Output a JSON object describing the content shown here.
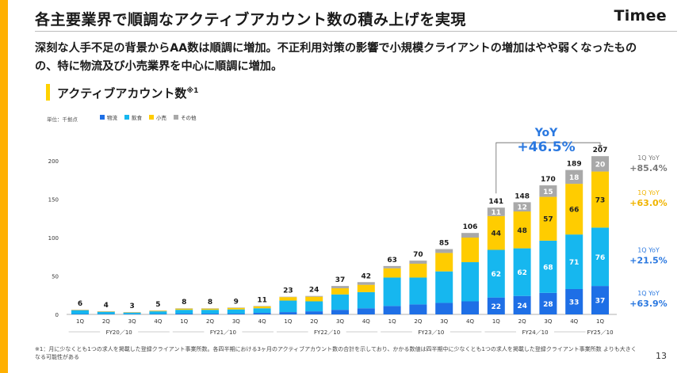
{
  "header": {
    "title": "各主要業界で順調なアクティブアカウント数の積み上げを実現",
    "logo": "Timee"
  },
  "body_text": "深刻な人手不足の背景からAA数は順調に増加。不正利用対策の影響で小規模クライアントの増加はやや弱くなったもの の、特に物流及び小売業界を中心に順調に増加。",
  "section": {
    "title": "アクティブアカウント数",
    "footnote_mark": "※1"
  },
  "footnote": "※1：月に少なくとも1つの求人を掲載した登録クライアント事業所数。各四半期における3ヶ月のアクティブアカウント数の合計を示しており、かかる数値は四半期中に少なくとも1つの求人を掲載した登録クライアント事業所数 よりも大きくなる可能性がある",
  "page_number": "13",
  "colors": {
    "butsuryu": "#1e6fe6",
    "inshoku": "#16b7ef",
    "kouri": "#ffcc00",
    "sonota": "#a9a9a9",
    "accent_left": "#ffb000",
    "yoy_blue": "#2a78e0",
    "yoy_yellow": "#f0b400",
    "yoy_gray": "#7a7a7a"
  },
  "chart_data": {
    "type": "bar",
    "stacked": true,
    "unit_label": "単位：千拠点",
    "ylim": [
      0,
      210
    ],
    "yticks": [
      0,
      50,
      100,
      150,
      200
    ],
    "grid": false,
    "legend": [
      "物流",
      "飲食",
      "小売",
      "その他"
    ],
    "categories": [
      "1Q",
      "2Q",
      "3Q",
      "4Q",
      "1Q",
      "2Q",
      "3Q",
      "4Q",
      "1Q",
      "2Q",
      "3Q",
      "4Q",
      "1Q",
      "2Q",
      "3Q",
      "4Q",
      "1Q",
      "2Q",
      "3Q",
      "4Q",
      "1Q"
    ],
    "fiscal_years": [
      {
        "label": "FY20／10",
        "start": 0,
        "end": 3
      },
      {
        "label": "FY21／10",
        "start": 4,
        "end": 7
      },
      {
        "label": "FY22／10",
        "start": 8,
        "end": 11
      },
      {
        "label": "FY23／10",
        "start": 12,
        "end": 15
      },
      {
        "label": "FY24／10",
        "start": 16,
        "end": 19
      },
      {
        "label": "FY25／10",
        "start": 20,
        "end": 20
      }
    ],
    "totals": [
      6,
      4,
      3,
      5,
      8,
      8,
      9,
      11,
      23,
      24,
      37,
      42,
      63,
      70,
      85,
      106,
      141,
      148,
      170,
      189,
      207
    ],
    "series": [
      {
        "name": "物流",
        "values": [
          0.5,
          0.4,
          0.3,
          0.5,
          1,
          1,
          1,
          2,
          3,
          4,
          6,
          8,
          11,
          13,
          15,
          17,
          22,
          24,
          28,
          33,
          37
        ],
        "labeled_from": 16
      },
      {
        "name": "飲食",
        "values": [
          5,
          3,
          2,
          3.5,
          5,
          5,
          5.5,
          6,
          15,
          13,
          20,
          21,
          37,
          35,
          41,
          51,
          62,
          62,
          68,
          71,
          76
        ],
        "labeled_from": 16
      },
      {
        "name": "小売",
        "values": [
          0.3,
          0.3,
          0.4,
          0.7,
          1.5,
          1.5,
          2,
          2.5,
          4.5,
          6,
          8,
          9.5,
          12,
          18,
          24,
          32,
          44,
          48,
          57,
          66,
          73
        ],
        "labeled_from": 16
      },
      {
        "name": "その他",
        "values": [
          0.2,
          0.3,
          0.3,
          0.3,
          0.5,
          0.5,
          0.5,
          0.5,
          0.5,
          1,
          3,
          3.5,
          3,
          4,
          5,
          6,
          11,
          12,
          15,
          18,
          20
        ],
        "labeled_from": 16
      }
    ],
    "yoy_callout": {
      "label": "YoY",
      "value": "+46.5%"
    },
    "yoy_right": [
      {
        "label": "1Q YoY",
        "value": "+85.4%",
        "series": "その他"
      },
      {
        "label": "1Q YoY",
        "value": "+63.0%",
        "series": "小売"
      },
      {
        "label": "1Q YoY",
        "value": "+21.5%",
        "series": "飲食"
      },
      {
        "label": "1Q YoY",
        "value": "+63.9%",
        "series": "物流"
      }
    ]
  }
}
